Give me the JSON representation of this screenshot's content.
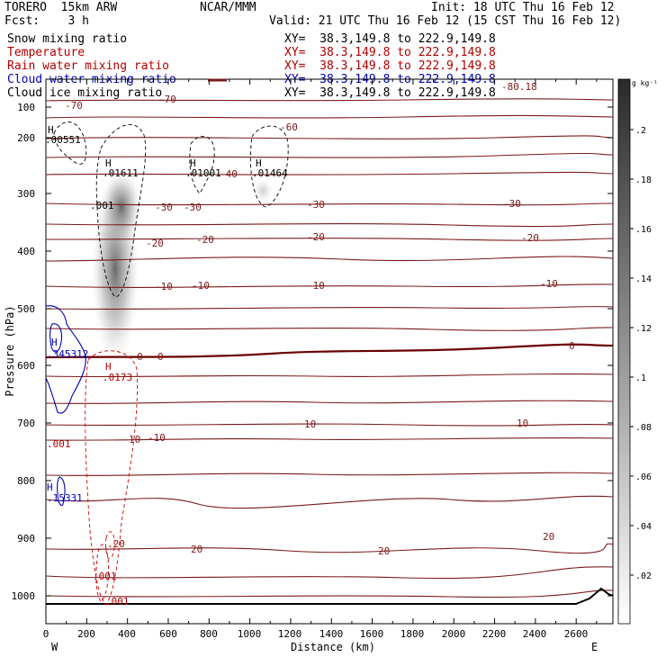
{
  "header": {
    "model": "TORERO  15km ARW",
    "org": "NCAR/MMM",
    "init": "Init: 18 UTC Thu 16 Feb 12",
    "fcst": "Fcst:    3 h",
    "valid": "Valid: 21 UTC Thu 16 Feb 12 (15 CST Thu 16 Feb 12)"
  },
  "fields": [
    {
      "name": "Snow mixing ratio",
      "xy": "XY=  38.3,149.8 to 222.9,149.8",
      "color": "#000000"
    },
    {
      "name": "Temperature",
      "xy": "XY=  38.3,149.8 to 222.9,149.8",
      "color": "#b00000"
    },
    {
      "name": "Rain water mixing ratio",
      "xy": "XY=  38.3,149.8 to 222.9,149.8",
      "color": "#b00000"
    },
    {
      "name": "Cloud water mixing ratio",
      "xy": "XY=  38.3,149.8 to 222.9,149.8",
      "color": "#0000b0"
    },
    {
      "name": "Cloud ice mixing ratio",
      "xy": "XY=  38.3,149.8 to 222.9,149.8",
      "color": "#000000"
    }
  ],
  "chart_data": {
    "type": "cross-section",
    "xlabel": "Distance (km)",
    "ylabel": "Pressure (hPa)",
    "xlim": [
      0,
      2780
    ],
    "ylim": [
      1050,
      100
    ],
    "xticks": [
      0,
      100,
      200,
      300,
      400,
      500,
      600,
      700,
      800,
      900,
      1000,
      1100,
      1200,
      1300,
      1400,
      1500,
      1600,
      1700,
      1800,
      1900,
      2000,
      2100,
      2200,
      2300,
      2400,
      2500,
      2600,
      2700
    ],
    "xtick_labels": [
      "0",
      "200",
      "400",
      "600",
      "800",
      "1000",
      "1200",
      "1400",
      "1600",
      "1800",
      "2000",
      "2200",
      "2400",
      "2600"
    ],
    "ytick_labels": [
      "100",
      "200",
      "300",
      "400",
      "500",
      "600",
      "700",
      "800",
      "900",
      "1000"
    ],
    "endpoints": {
      "west": "W",
      "east": "E"
    },
    "colorbar": {
      "units": "g kg⁻¹",
      "tick_labels": [
        ".02",
        ".04",
        ".06",
        ".08",
        ".1",
        ".12",
        ".14",
        ".16",
        ".18",
        ".2"
      ],
      "max": 0.22
    },
    "snow_shading_center_km": [
      310,
      430
    ],
    "temperature_isotherms_C": [
      -70,
      -60,
      -50,
      -40,
      -30,
      -20,
      -10,
      0,
      10,
      20
    ],
    "temperature_labels": [
      "-70",
      "-70",
      "-60",
      "-40",
      "-30",
      "-30",
      "-30",
      "-30",
      "-20",
      "-20",
      "-20",
      "-20",
      "-10",
      "-10",
      "-10",
      "-10",
      "0",
      "0",
      "0",
      "10",
      "10",
      "10",
      "-10",
      "20",
      "20",
      "20",
      "-80.18"
    ],
    "maxima_labels": [
      {
        "symbol": "H",
        "value": ".00551",
        "color": "#000000"
      },
      {
        "symbol": "H",
        "value": ".01611",
        "color": "#000000"
      },
      {
        "symbol": "H",
        "value": ".01001",
        "color": "#000000"
      },
      {
        "symbol": "H",
        "value": ".01464",
        "color": "#000000"
      },
      {
        "symbol": "H",
        "value": ".345312",
        "color": "#0000b0"
      },
      {
        "symbol": "H",
        "value": ".0173",
        "color": "#b00000"
      },
      {
        "symbol": "H",
        "value": ".15331",
        "color": "#0000b0"
      }
    ],
    "contour_labels": [
      {
        "value": ".001",
        "color": "#000000"
      },
      {
        "value": ".001",
        "color": "#b00000"
      },
      {
        "value": ".001",
        "color": "#b00000"
      },
      {
        "value": ".001",
        "color": "#b00000"
      },
      {
        "value": ".20",
        "color": "#b00000"
      }
    ]
  }
}
